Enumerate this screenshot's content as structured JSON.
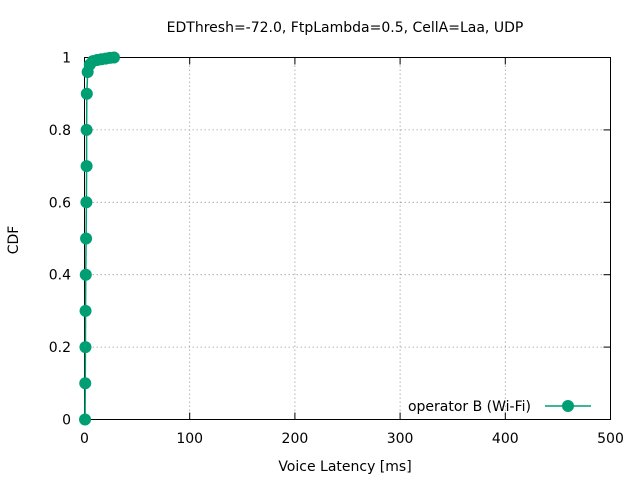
{
  "chart_data": {
    "type": "line",
    "title": "EDThresh=-72.0, FtpLambda=0.5, CellA=Laa, UDP",
    "xlabel": "Voice Latency [ms]",
    "ylabel": "CDF",
    "xlim": [
      0,
      500
    ],
    "ylim": [
      0,
      1
    ],
    "xticks": [
      0,
      100,
      200,
      300,
      400,
      500
    ],
    "yticks": [
      0,
      0.2,
      0.4,
      0.6,
      0.8,
      1
    ],
    "xtick_labels": [
      "0",
      "100",
      "200",
      "300",
      "400",
      "500"
    ],
    "ytick_labels": [
      "0",
      "0.2",
      "0.4",
      "0.6",
      "0.8",
      "1"
    ],
    "grid": true,
    "legend_position": "bottom-right",
    "series": [
      {
        "name": "operator B (Wi-Fi)",
        "color": "#009e73",
        "marker": "circle",
        "x": [
          0.5,
          0.7,
          0.9,
          1.0,
          1.2,
          1.5,
          1.8,
          2.0,
          2.0,
          2.2,
          3,
          5,
          8,
          12,
          16,
          20,
          24,
          28
        ],
        "y": [
          0,
          0.1,
          0.2,
          0.3,
          0.4,
          0.5,
          0.6,
          0.7,
          0.8,
          0.9,
          0.96,
          0.98,
          0.99,
          0.993,
          0.995,
          0.997,
          0.999,
          1.0
        ]
      }
    ]
  }
}
